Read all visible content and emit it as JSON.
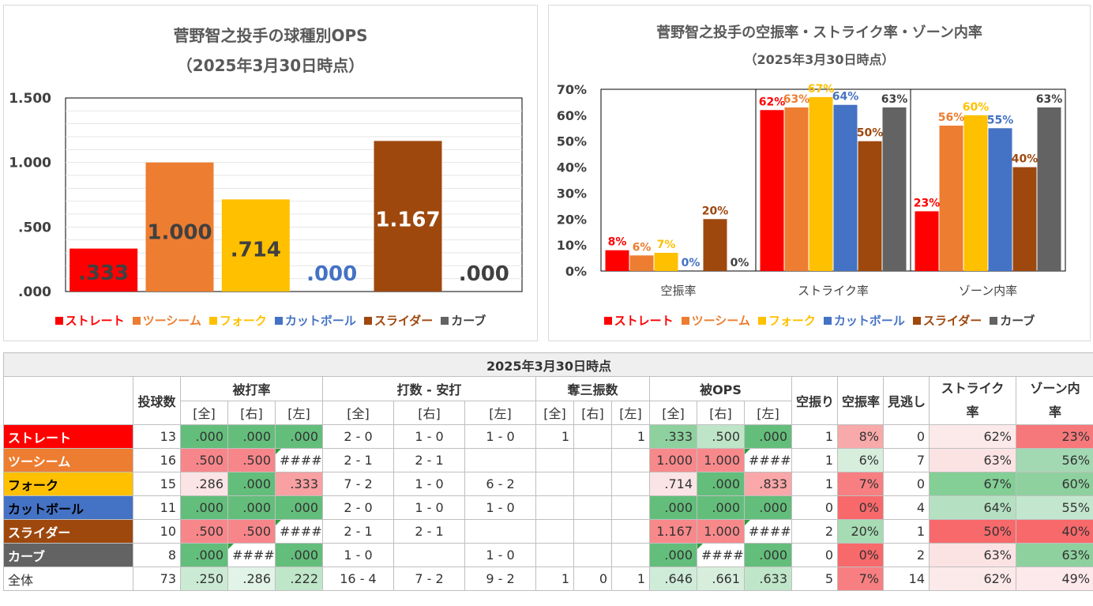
{
  "chart_data": [
    {
      "type": "bar",
      "title": "菅野智之投手の球種別OPS",
      "subtitle": "（2025年3月30日時点）",
      "categories": [
        "ストレート",
        "ツーシーム",
        "フォーク",
        "カットボール",
        "スライダー",
        "カーブ"
      ],
      "values": [
        0.333,
        1.0,
        0.714,
        0.0,
        1.167,
        0.0
      ],
      "data_labels": [
        ".333",
        "1.000",
        ".714",
        ".000",
        "1.167",
        ".000"
      ],
      "ylim": [
        0,
        1.5
      ],
      "yticks": [
        ".000",
        ".500",
        "1.000",
        "1.500"
      ],
      "grid": true,
      "legend_position": "bottom"
    },
    {
      "type": "bar",
      "title": "菅野智之投手の空振率・ストライク率・ゾーン内率",
      "subtitle": "（2025年3月30日時点）",
      "categories": [
        "空振率",
        "ストライク率",
        "ゾーン内率"
      ],
      "series": [
        {
          "name": "ストレート",
          "values": [
            8,
            62,
            23
          ]
        },
        {
          "name": "ツーシーム",
          "values": [
            6,
            63,
            56
          ]
        },
        {
          "name": "フォーク",
          "values": [
            7,
            67,
            60
          ]
        },
        {
          "name": "カットボール",
          "values": [
            0,
            64,
            55
          ]
        },
        {
          "name": "スライダー",
          "values": [
            20,
            50,
            40
          ]
        },
        {
          "name": "カーブ",
          "values": [
            0,
            63,
            63
          ]
        }
      ],
      "ylim": [
        0,
        70
      ],
      "yticks": [
        "0%",
        "10%",
        "20%",
        "30%",
        "40%",
        "50%",
        "60%",
        "70%"
      ],
      "legend_position": "bottom"
    },
    {
      "type": "table",
      "title": "2025年3月30日時点",
      "group_headers": [
        "投球数",
        "被打率",
        "打数 - 安打",
        "奪三振数",
        "被OPS",
        "空振り",
        "空振率",
        "見逃し",
        "ストライク率",
        "ゾーン内率"
      ],
      "sub_headers": [
        "[全]",
        "[右]",
        "[左]"
      ],
      "rows": [
        {
          "label": "ストレート",
          "cells": [
            "13",
            ".000",
            ".000",
            ".000",
            "2 - 0",
            "1 - 0",
            "1 - 0",
            "1",
            "",
            "1",
            ".333",
            ".500",
            ".000",
            "1",
            "8%",
            "0",
            "62%",
            "23%"
          ]
        },
        {
          "label": "ツーシーム",
          "cells": [
            "16",
            ".500",
            ".500",
            "####",
            "2 - 1",
            "2 - 1",
            "",
            "",
            "",
            "",
            "1.000",
            "1.000",
            "####",
            "1",
            "6%",
            "7",
            "63%",
            "56%"
          ]
        },
        {
          "label": "フォーク",
          "cells": [
            "15",
            ".286",
            ".000",
            ".333",
            "7 - 2",
            "1 - 0",
            "6 - 2",
            "",
            "",
            "",
            ".714",
            ".000",
            ".833",
            "1",
            "7%",
            "0",
            "67%",
            "60%"
          ]
        },
        {
          "label": "カットボール",
          "cells": [
            "11",
            ".000",
            ".000",
            ".000",
            "2 - 0",
            "1 - 0",
            "1 - 0",
            "",
            "",
            "",
            ".000",
            ".000",
            ".000",
            "0",
            "0%",
            "4",
            "64%",
            "55%"
          ]
        },
        {
          "label": "スライダー",
          "cells": [
            "10",
            ".500",
            ".500",
            "####",
            "2 - 1",
            "2 - 1",
            "",
            "",
            "",
            "",
            "1.167",
            "1.000",
            "####",
            "2",
            "20%",
            "1",
            "50%",
            "40%"
          ]
        },
        {
          "label": "カーブ",
          "cells": [
            "8",
            ".000",
            "####",
            ".000",
            "1 - 0",
            "",
            "1 - 0",
            "",
            "",
            "",
            ".000",
            "####",
            ".000",
            "0",
            "0%",
            "2",
            "63%",
            "63%"
          ]
        },
        {
          "label": "全体",
          "cells": [
            "73",
            ".250",
            ".286",
            ".222",
            "16 - 4",
            "7 - 2",
            "9 - 2",
            "1",
            "0",
            "1",
            ".646",
            ".661",
            ".633",
            "5",
            "7%",
            "14",
            "62%",
            "49%"
          ]
        }
      ]
    }
  ],
  "colors": {
    "ストレート": "#ff0000",
    "ツーシーム": "#ed7d31",
    "フォーク": "#ffc000",
    "カットボール": "#4472c4",
    "スライダー": "#9e480e",
    "カーブ": "#636363",
    "heat_green": "#63be7b",
    "heat_red": "#f8696b",
    "heat_white": "#fcfcff"
  }
}
